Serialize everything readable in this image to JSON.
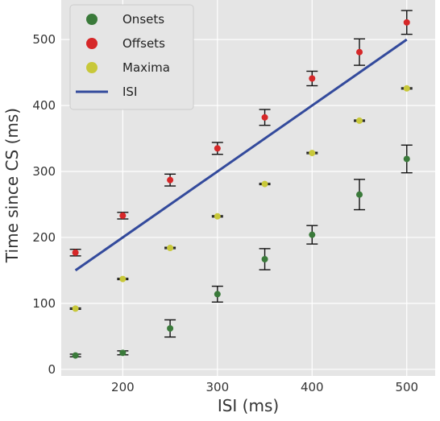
{
  "chart_data": {
    "type": "scatter",
    "xlabel": "ISI (ms)",
    "ylabel": "Time since CS (ms)",
    "xlim": [
      135,
      530
    ],
    "ylim": [
      -10,
      560
    ],
    "xticks": [
      200,
      300,
      400,
      500
    ],
    "yticks": [
      0,
      100,
      200,
      300,
      400,
      500
    ],
    "grid": true,
    "legend_position": "top-left",
    "series": [
      {
        "name": "Onsets",
        "kind": "points-with-error-bars",
        "color": "#3a7a3a",
        "x": [
          150,
          200,
          250,
          300,
          350,
          400,
          450,
          500
        ],
        "y": [
          21,
          25,
          62,
          114,
          167,
          204,
          265,
          319
        ],
        "err": [
          2,
          3,
          13,
          12,
          16,
          14,
          23,
          21
        ]
      },
      {
        "name": "Offsets",
        "kind": "points-with-error-bars",
        "color": "#d62728",
        "x": [
          150,
          200,
          250,
          300,
          350,
          400,
          450,
          500
        ],
        "y": [
          177,
          233,
          287,
          335,
          382,
          441,
          481,
          526
        ],
        "err": [
          5,
          5,
          9,
          9,
          12,
          11,
          20,
          18
        ]
      },
      {
        "name": "Maxima",
        "kind": "points-with-error-bars",
        "color": "#c8c83a",
        "x": [
          150,
          200,
          250,
          300,
          350,
          400,
          450,
          500
        ],
        "y": [
          92,
          137,
          184,
          232,
          281,
          328,
          377,
          426
        ],
        "err": [
          1,
          1,
          1,
          1,
          1,
          1,
          1,
          1
        ]
      },
      {
        "name": "ISI",
        "kind": "line",
        "color": "#334a9c",
        "x": [
          150,
          500
        ],
        "y": [
          150,
          500
        ]
      }
    ]
  }
}
